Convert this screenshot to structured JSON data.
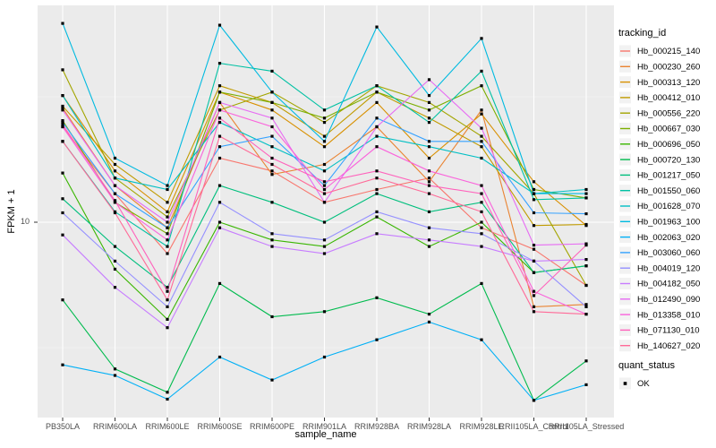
{
  "figure": {
    "y_axis_title": "FPKM + 1",
    "x_axis_title": "sample_name",
    "y_tick_label": "10",
    "legend_title": "tracking_id",
    "quant_legend_title": "quant_status",
    "quant_legend_item": "OK"
  },
  "chart_data": {
    "type": "line",
    "title": "",
    "xlabel": "sample_name",
    "ylabel": "FPKM + 1",
    "y_scale": "log10",
    "y_ticks": [
      10
    ],
    "ylim": [
      1.66,
      73
    ],
    "grid": true,
    "legend_position": "right",
    "legend_title": "tracking_id",
    "point_marker": "small black square (quant_status = OK)",
    "categories": [
      "PB350LA",
      "RRIM600LA",
      "RRIM600LE",
      "RRIM600SE",
      "RRIM600PE",
      "RRIM901LA",
      "RRIM928BA",
      "RRIM928LA",
      "RRIM928LE",
      "RRII105LA_Control",
      "RRII105LA_Stressed"
    ],
    "series": [
      {
        "name": "Hb_000215_140",
        "color": "#F8766D",
        "values": [
          24,
          13,
          7.5,
          18,
          16,
          12,
          13.5,
          15,
          9.5,
          7.8,
          5.6
        ]
      },
      {
        "name": "Hb_000230_260",
        "color": "#EA8331",
        "values": [
          28.5,
          14,
          9.5,
          30,
          15.5,
          17,
          24,
          14.5,
          28,
          4.6,
          4.7
        ]
      },
      {
        "name": "Hb_000313_120",
        "color": "#D89000",
        "values": [
          32,
          16,
          11,
          33,
          28,
          20,
          30,
          18,
          27,
          14.5,
          9.7
        ]
      },
      {
        "name": "Hb_000412_010",
        "color": "#C09B00",
        "values": [
          29,
          17,
          12,
          35,
          30,
          22,
          33,
          26,
          20,
          9.7,
          9.8
        ]
      },
      {
        "name": "Hb_000556_220",
        "color": "#A3A500",
        "values": [
          40.5,
          15,
          10.5,
          28,
          33,
          25,
          35,
          30,
          22,
          13,
          5.6
        ]
      },
      {
        "name": "Hb_000667_030",
        "color": "#7CAE00",
        "values": [
          25.4,
          12,
          9,
          33,
          30,
          26,
          33,
          28,
          35,
          13.5,
          12.5
        ]
      },
      {
        "name": "Hb_000696_050",
        "color": "#39B600",
        "values": [
          15.7,
          6.5,
          4.1,
          10,
          8.5,
          8,
          10.5,
          8,
          10,
          6.3,
          6.7
        ]
      },
      {
        "name": "Hb_000720_130",
        "color": "#00BB4E",
        "values": [
          4.9,
          2.6,
          2.1,
          5.7,
          4.2,
          4.4,
          5.0,
          4.3,
          5.7,
          1.95,
          2.8
        ]
      },
      {
        "name": "Hb_001217_050",
        "color": "#00BF7D",
        "values": [
          12.4,
          8,
          5.5,
          14,
          12,
          10,
          13,
          11,
          12,
          6.3,
          6.7
        ]
      },
      {
        "name": "Hb_001550_060",
        "color": "#00C1A3",
        "values": [
          21,
          11,
          8,
          43,
          40,
          28,
          35,
          25,
          40,
          12.3,
          12.5
        ]
      },
      {
        "name": "Hb_001628_070",
        "color": "#00BFC4",
        "values": [
          32,
          15,
          13.5,
          25,
          20,
          16,
          22,
          20,
          18,
          13,
          13.5
        ]
      },
      {
        "name": "Hb_001963_100",
        "color": "#00BAE0",
        "values": [
          62,
          18,
          14,
          61,
          33,
          21,
          60,
          32,
          54,
          13,
          13
        ]
      },
      {
        "name": "Hb_002063_020",
        "color": "#00B0F6",
        "values": [
          2.7,
          2.45,
          1.97,
          2.9,
          2.35,
          2.9,
          3.4,
          4.0,
          3.4,
          1.95,
          2.25
        ]
      },
      {
        "name": "Hb_003060_060",
        "color": "#35A2FF",
        "values": [
          25,
          13,
          9.5,
          20,
          22,
          14,
          26,
          21,
          21,
          10.9,
          10.8
        ]
      },
      {
        "name": "Hb_004019_120",
        "color": "#9590FF",
        "values": [
          10.9,
          7,
          4.6,
          12,
          9,
          8.5,
          11,
          9.5,
          9,
          7.0,
          4.6
        ]
      },
      {
        "name": "Hb_004182_050",
        "color": "#C77CFF",
        "values": [
          8.9,
          5.5,
          3.8,
          9.5,
          8,
          7.5,
          9,
          8.5,
          8,
          7.0,
          7.1
        ]
      },
      {
        "name": "Hb_012490_090",
        "color": "#E76BF3",
        "values": [
          28,
          14,
          10,
          30,
          26,
          12,
          24,
          37,
          23.7,
          8.1,
          8.2
        ]
      },
      {
        "name": "Hb_013358_010",
        "color": "#FA62DB",
        "values": [
          24,
          12,
          8.5,
          28,
          24,
          13.5,
          20,
          16,
          14,
          5.3,
          4.3
        ]
      },
      {
        "name": "Hb_071130_010",
        "color": "#FF62BC",
        "values": [
          24.5,
          12.2,
          5.3,
          26,
          18,
          14.5,
          16,
          14,
          13,
          5.1,
          8.1
        ]
      },
      {
        "name": "Hb_140627_020",
        "color": "#FF6A98",
        "values": [
          21,
          10.9,
          4.9,
          22,
          17,
          13,
          15,
          13,
          11,
          4.4,
          4.3
        ]
      }
    ],
    "quant_status": {
      "title": "quant_status",
      "items": [
        {
          "label": "OK",
          "marker": "black-square"
        }
      ]
    },
    "colors": {
      "panel_bg": "#EBEBEB",
      "grid_major": "#FFFFFF",
      "point": "#000000",
      "axis_text": "#4D4D4D",
      "tick_mark": "#333333",
      "title_text": "#000000",
      "legend_key_bg": "#F2F2F2"
    }
  }
}
